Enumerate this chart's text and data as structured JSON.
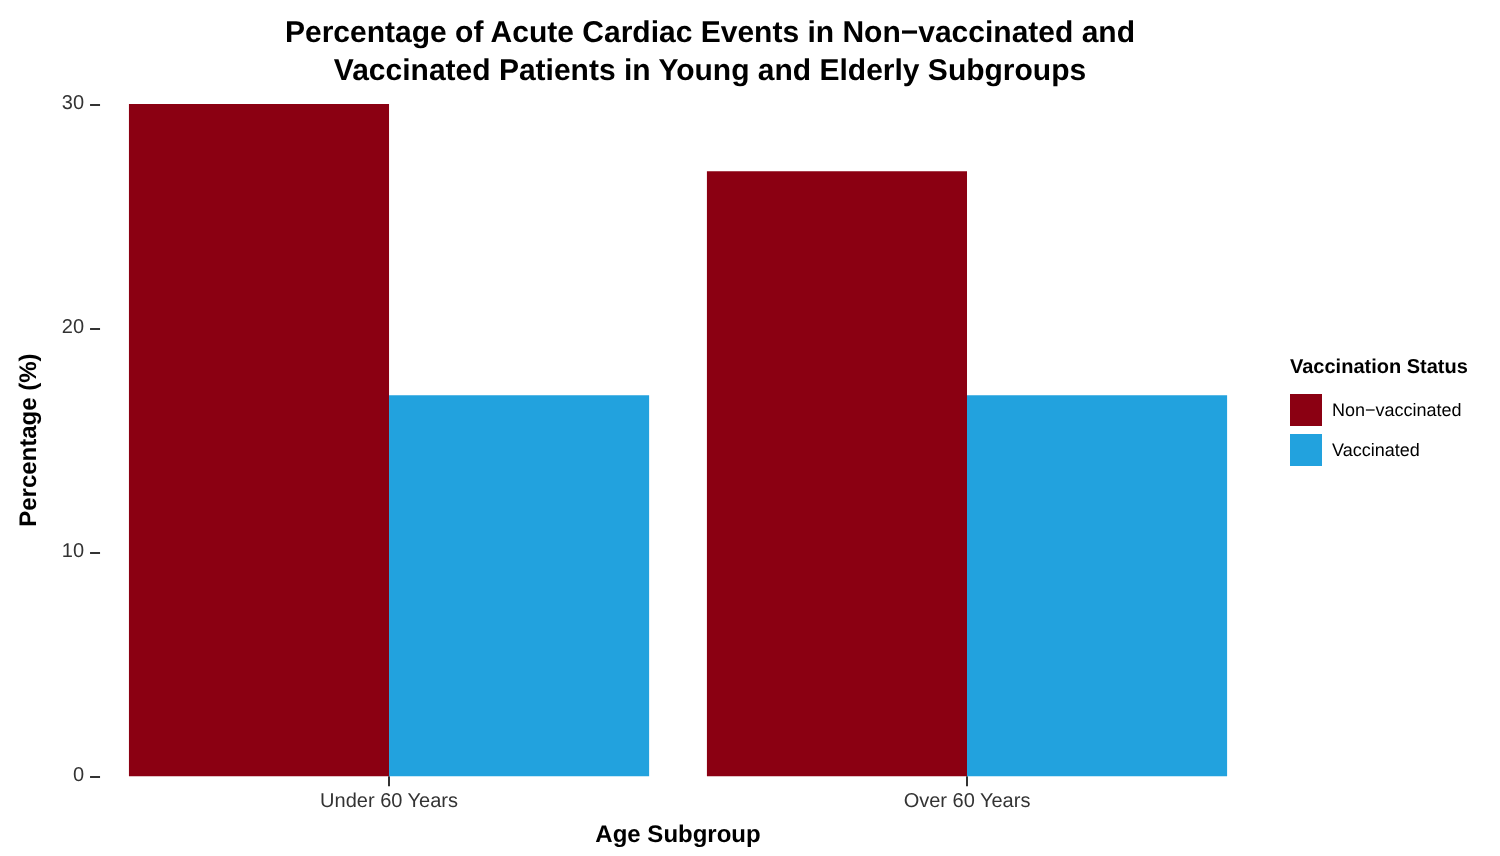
{
  "chart_data": {
    "type": "bar",
    "title": "Percentage of Acute Cardiac Events in Non−vaccinated and\nVaccinated Patients in Young and Elderly Subgroups",
    "xlabel": "Age Subgroup",
    "ylabel": "Percentage (%)",
    "legend_title": "Vaccination Status",
    "categories": [
      "Under 60 Years",
      "Over 60 Years"
    ],
    "series": [
      {
        "name": "Non−vaccinated",
        "color": "#8b0012",
        "values": [
          30,
          27
        ]
      },
      {
        "name": "Vaccinated",
        "color": "#22a2de",
        "values": [
          17,
          17
        ]
      }
    ],
    "ylim": [
      0,
      30
    ],
    "yticks": [
      0,
      10,
      20,
      30
    ],
    "grid": false,
    "legend": "right"
  }
}
